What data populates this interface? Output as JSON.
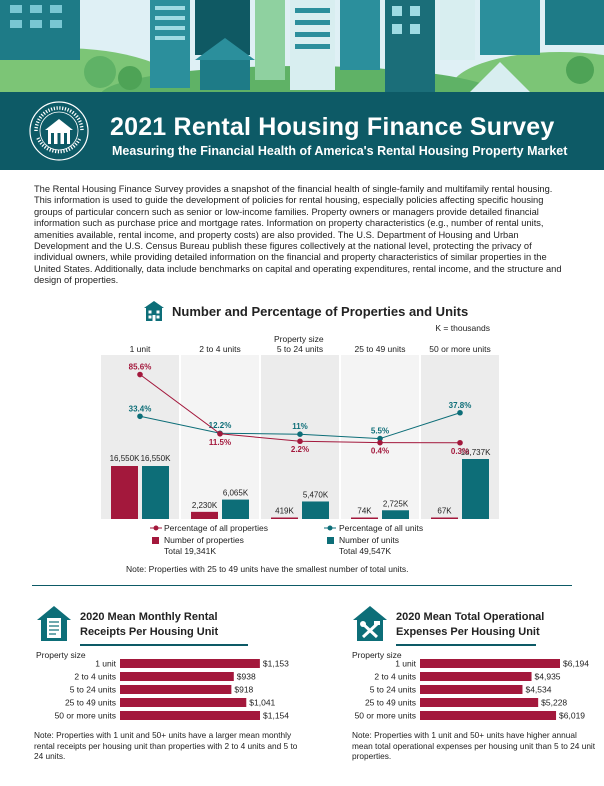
{
  "header": {
    "title": "2021 Rental Housing Finance Survey",
    "subtitle": "Measuring the Financial Health of America's Rental Housing Property Market",
    "seal_text": "U.S. DEPARTMENT OF HOUSING AND URBAN DEVELOPMENT"
  },
  "intro": "The Rental Housing Finance Survey provides a snapshot of the financial health of single-family and multifamily rental housing. This information is used to guide the development of policies for rental housing, especially policies affecting specific housing groups of particular concern such as senior or low-income families. Property owners or managers provide detailed financial information such as purchase price and mortgage rates. Information on property characteristics (e.g., number of rental units, amenities available, rental income, and property costs) are also provided. The U.S. Department of Housing and Urban Development and the U.S. Census Bureau publish these figures collectively at the national level, protecting the privacy of individual owners, while providing detailed information on the financial and property characteristics of similar properties in the United States. Additionally, data include benchmarks on capital and operating expenditures, rental income, and the structure and design of properties.",
  "colors": {
    "teal": "#0d6e78",
    "crimson": "#a3183c",
    "banner": "#0d5a66",
    "panel": "#eeeeee"
  },
  "icons": {
    "main_chart": "apartment-building-icon",
    "receipts": "house-receipt-icon",
    "expenses": "house-tools-icon"
  },
  "main_chart": {
    "title": "Number and Percentage of Properties and Units",
    "k_note": "K = thousands",
    "property_size_label": "Property size",
    "note": "Note: Properties with 25 to 49 units have the smallest number of total units.",
    "legend": {
      "pct_properties": "Percentage of all properties",
      "pct_units": "Percentage of all units",
      "num_properties": "Number of properties",
      "num_properties_total": "Total 19,341K",
      "num_units": "Number of units",
      "num_units_total": "Total 49,547K"
    }
  },
  "chart_data": [
    {
      "type": "bar+line",
      "title": "Number and Percentage of Properties and Units",
      "categories": [
        "1 unit",
        "2 to 4 units",
        "5 to 24 units",
        "25 to 49 units",
        "50 or more units"
      ],
      "series": [
        {
          "name": "Number of properties",
          "kind": "bar",
          "values": [
            16550,
            2230,
            419,
            74,
            67
          ],
          "labels": [
            "16,550K",
            "2,230K",
            "419K",
            "74K",
            "67K"
          ],
          "color": "#a3183c"
        },
        {
          "name": "Number of units",
          "kind": "bar",
          "values": [
            16550,
            6065,
            5470,
            2725,
            18737
          ],
          "labels": [
            "16,550K",
            "6,065K",
            "5,470K",
            "2,725K",
            "18,737K"
          ],
          "color": "#0d6e78"
        },
        {
          "name": "Percentage of all properties",
          "kind": "line",
          "values": [
            85.6,
            11.5,
            2.2,
            0.4,
            0.3
          ],
          "labels": [
            "85.6%",
            "11.5%",
            "2.2%",
            "0.4%",
            "0.3%"
          ],
          "color": "#a3183c"
        },
        {
          "name": "Percentage of all units",
          "kind": "line",
          "values": [
            33.4,
            12.2,
            11,
            5.5,
            37.8
          ],
          "labels": [
            "33.4%",
            "12.2%",
            "11%",
            "5.5%",
            "37.8%"
          ],
          "color": "#0d6e78"
        }
      ]
    },
    {
      "type": "bar",
      "orientation": "horizontal",
      "title": "2020 Mean Monthly Rental Receipts Per Housing Unit",
      "axis_label": "Property size",
      "categories": [
        "1 unit",
        "2 to 4 units",
        "5 to 24 units",
        "25 to 49 units",
        "50 or more units"
      ],
      "values": [
        1153,
        938,
        918,
        1041,
        1154
      ],
      "labels": [
        "$1,153",
        "$938",
        "$918",
        "$1,041",
        "$1,154"
      ],
      "color": "#a3183c",
      "note": "Note: Properties with 1 unit and 50+ units have a larger mean monthly rental receipts per housing unit than properties with 2 to 4 units and 5 to 24 units."
    },
    {
      "type": "bar",
      "orientation": "horizontal",
      "title": "2020 Mean Total Operational Expenses Per Housing Unit",
      "axis_label": "Property size",
      "categories": [
        "1 unit",
        "2 to 4 units",
        "5 to 24 units",
        "25 to 49 units",
        "50 or more units"
      ],
      "values": [
        6194,
        4935,
        4534,
        5228,
        6019
      ],
      "labels": [
        "$6,194",
        "$4,935",
        "$4,534",
        "$5,228",
        "$6,019"
      ],
      "color": "#a3183c",
      "note": "Note: Properties with 1 unit and 50+ units have higher annual mean total operational expenses per housing unit than 5 to 24 unit properties."
    }
  ]
}
